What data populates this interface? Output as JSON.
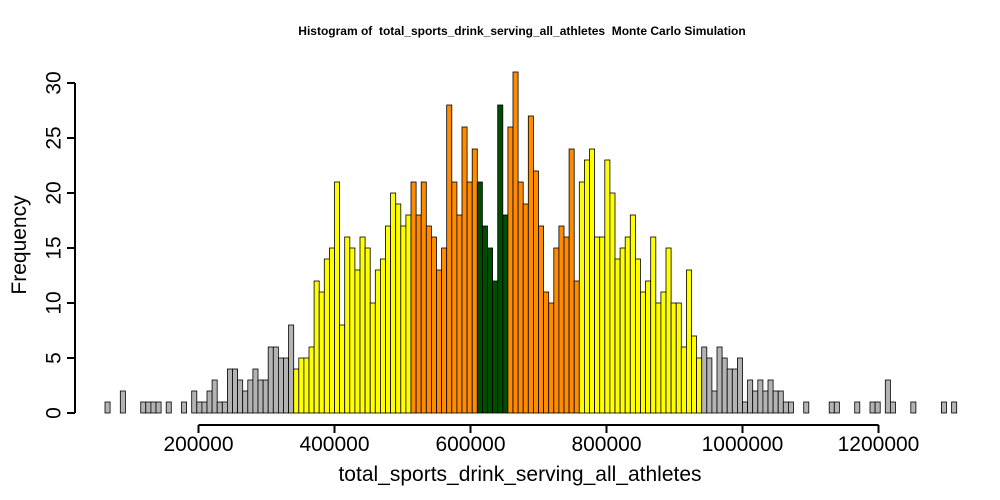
{
  "chart_data": {
    "type": "histogram",
    "title": "Histogram of  total_sports_drink_serving_all_athletes  Monte Carlo Simulation",
    "xlabel": "total_sports_drink_serving_all_athletes",
    "ylabel": "Frequency",
    "xlim": [
      62500,
      1287500
    ],
    "ylim": [
      0,
      31
    ],
    "bin_width": 7500,
    "bin_start": 62500,
    "x_ticks": [
      200000,
      400000,
      600000,
      800000,
      1000000,
      1200000
    ],
    "x_tick_labels": [
      "200000",
      "400000",
      "600000",
      "800000",
      "1000000",
      "1200000"
    ],
    "y_ticks": [
      0,
      5,
      10,
      15,
      20,
      25,
      30
    ],
    "y_tick_labels": [
      "0",
      "5",
      "10",
      "15",
      "20",
      "25",
      "30"
    ],
    "colors": {
      "outer": "#b3b3b3",
      "middle": "#ffff00",
      "inner": "#ff8c00",
      "center": "#004d00"
    },
    "color_bands": [
      {
        "from": 62500,
        "to": 340000,
        "color": "outer"
      },
      {
        "from": 340000,
        "to": 510000,
        "color": "middle"
      },
      {
        "from": 510000,
        "to": 612500,
        "color": "inner"
      },
      {
        "from": 612500,
        "to": 652500,
        "color": "center"
      },
      {
        "from": 652500,
        "to": 762500,
        "color": "inner"
      },
      {
        "from": 762500,
        "to": 940000,
        "color": "middle"
      },
      {
        "from": 940000,
        "to": 1287500,
        "color": "outer"
      }
    ],
    "counts": [
      1,
      0,
      0,
      2,
      0,
      0,
      0,
      1,
      1,
      1,
      1,
      0,
      1,
      0,
      0,
      1,
      0,
      2,
      1,
      1,
      2,
      3,
      1,
      1,
      4,
      4,
      3,
      2,
      3,
      4,
      3,
      3,
      6,
      6,
      5,
      5,
      8,
      4,
      5,
      5,
      6,
      12,
      11,
      14,
      15,
      21,
      8,
      16,
      15,
      13,
      16,
      15,
      10,
      13,
      14,
      17,
      20,
      19,
      17,
      18,
      21,
      18,
      21,
      17,
      16,
      13,
      15,
      28,
      21,
      18,
      26,
      21,
      24,
      21,
      17,
      15,
      12,
      28,
      18,
      26,
      31,
      21,
      19,
      27,
      22,
      17,
      11,
      10,
      15,
      17,
      16,
      24,
      12,
      21,
      23,
      24,
      16,
      16,
      23,
      20,
      14,
      15,
      16,
      18,
      14,
      11,
      12,
      16,
      10,
      11,
      15,
      10,
      10,
      6,
      13,
      7,
      5,
      6,
      5,
      2,
      6,
      5,
      4,
      4,
      5,
      1,
      3,
      2,
      3,
      2,
      3,
      2,
      2,
      1,
      1,
      0,
      0,
      1,
      0,
      0,
      0,
      0,
      1,
      1,
      0,
      0,
      0,
      1,
      0,
      0,
      1,
      1,
      0,
      3,
      1,
      0,
      0,
      0,
      1,
      0,
      0,
      0,
      0,
      0,
      1,
      0,
      1,
      0
    ]
  }
}
